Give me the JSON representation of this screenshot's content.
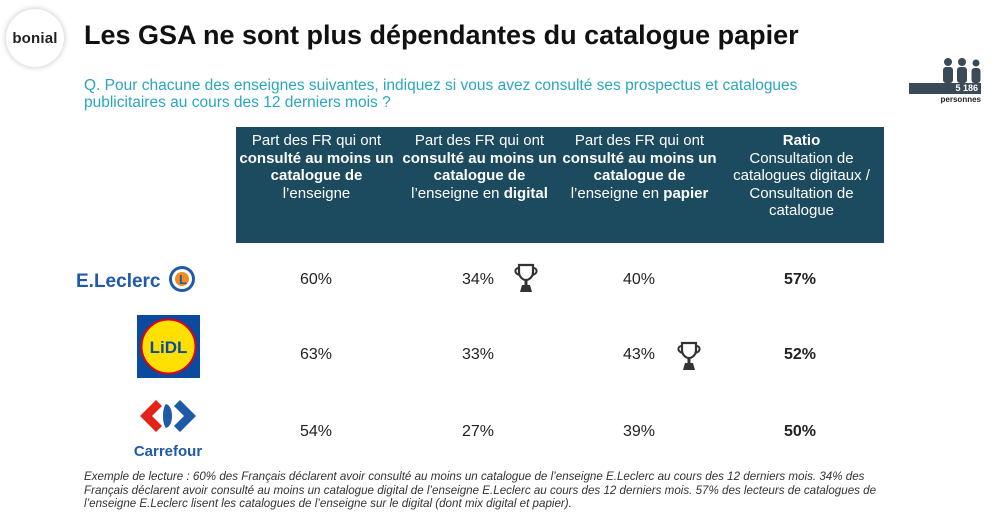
{
  "logo": {
    "text": "bonial"
  },
  "title": "Les GSA ne sont plus dépendantes du catalogue papier",
  "question": "Q. Pour chacune des enseignes suivantes, indiquez si vous avez consulté ses prospectus et catalogues publicitaires au cours des 12 derniers mois ?",
  "sample": {
    "count": "5 186",
    "label": "personnes"
  },
  "columns": [
    {
      "plain": "Part des FR qui ont",
      "bold": "consulté au moins un catalogue de",
      "tail": "l’enseigne",
      "tail_bold": ""
    },
    {
      "plain": "Part des FR qui ont",
      "bold": "consulté au moins un catalogue de",
      "tail": "l’enseigne en",
      "tail_bold": "digital"
    },
    {
      "plain": "Part des FR qui ont",
      "bold": "consulté au moins un catalogue de",
      "tail": "l’enseigne en",
      "tail_bold": "papier"
    },
    {
      "plain": "",
      "bold": "Ratio",
      "tail": "Consultation de catalogues digitaux / Consultation de catalogue",
      "tail_bold": ""
    }
  ],
  "rows": [
    {
      "brand": "E.Leclerc",
      "consulted": "60%",
      "digital": "34%",
      "paper": "40%",
      "ratio": "57%"
    },
    {
      "brand": "LiDL",
      "consulted": "63%",
      "digital": "33%",
      "paper": "43%",
      "ratio": "52%"
    },
    {
      "brand": "Carrefour",
      "consulted": "54%",
      "digital": "27%",
      "paper": "39%",
      "ratio": "50%"
    }
  ],
  "footnote": "Exemple de lecture : 60% des Français déclarent avoir consulté au moins un catalogue de l’enseigne E.Leclerc au cours des 12 derniers mois. 34% des Français déclarent avoir consulté au moins un catalogue digital de l’enseigne E.Leclerc au cours des 12 derniers mois. 57% des lecteurs de catalogues de l’enseigne E.Leclerc  lisent les catalogues de l’enseigne sur le digital (dont mix digital et papier).",
  "colors": {
    "header_bg": "#1c4a5e",
    "question_text": "#2aa6bf",
    "leclerc_blue": "#1f5aa8",
    "leclerc_orange": "#f28c1c",
    "lidl_blue": "#0b4a9c",
    "lidl_yellow": "#ffe000",
    "lidl_red": "#e2001a",
    "carrefour_blue": "#1e5aa8",
    "carrefour_red": "#e2231a"
  },
  "icons": [
    "bonial-logo",
    "people-icon",
    "trophy-icon",
    "leclerc-logo",
    "lidl-logo",
    "carrefour-logo"
  ]
}
